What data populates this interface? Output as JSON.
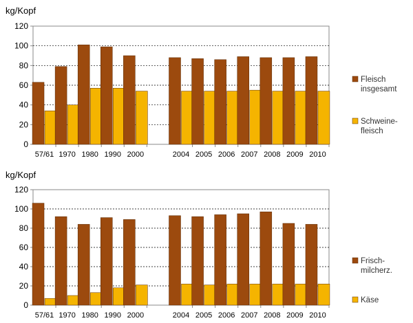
{
  "chart_data": [
    {
      "type": "bar",
      "ylabel": "kg/Kopf",
      "ylim": [
        0,
        120
      ],
      "yticks": [
        0,
        20,
        40,
        60,
        80,
        100,
        120
      ],
      "grid": true,
      "legend_position": "right",
      "categories": [
        "57/61",
        "1970",
        "1980",
        "1990",
        "2000",
        "",
        "2004",
        "2005",
        "2006",
        "2007",
        "2008",
        "2009",
        "2010"
      ],
      "series": [
        {
          "name_lines": [
            "Fleisch",
            "insgesamt"
          ],
          "color": "#9C4A0E",
          "values": [
            63,
            79,
            101,
            99,
            90,
            null,
            88,
            87,
            86,
            89,
            88,
            88,
            89
          ]
        },
        {
          "name_lines": [
            "Schweine-",
            "fleisch"
          ],
          "color": "#F5B400",
          "values": [
            34,
            40,
            57,
            57,
            54,
            null,
            54,
            54,
            54,
            55,
            54,
            54,
            54
          ]
        }
      ]
    },
    {
      "type": "bar",
      "ylabel": "kg/Kopf",
      "ylim": [
        0,
        120
      ],
      "yticks": [
        0,
        20,
        40,
        60,
        80,
        100,
        120
      ],
      "grid": true,
      "legend_position": "right",
      "categories": [
        "57/61",
        "1970",
        "1980",
        "1990",
        "2000",
        "",
        "2004",
        "2005",
        "2006",
        "2007",
        "2008",
        "2009",
        "2010"
      ],
      "series": [
        {
          "name_lines": [
            "Frisch-",
            "milcherz."
          ],
          "color": "#9C4A0E",
          "values": [
            106,
            92,
            84,
            91,
            89,
            null,
            93,
            92,
            94,
            95,
            97,
            85,
            84
          ]
        },
        {
          "name_lines": [
            "Käse"
          ],
          "color": "#F5B400",
          "values": [
            7,
            10,
            13,
            18,
            21,
            null,
            22,
            21,
            22,
            22,
            22,
            22,
            22
          ]
        }
      ]
    }
  ]
}
